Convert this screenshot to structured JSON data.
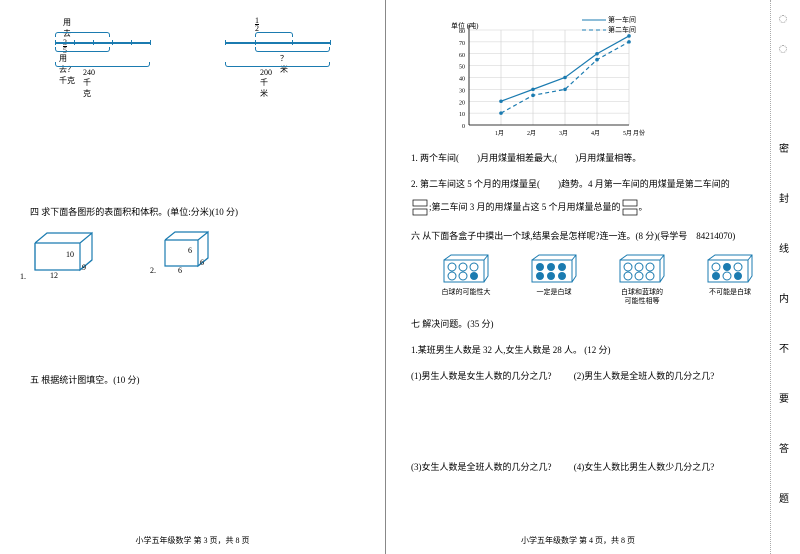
{
  "left": {
    "diag1": {
      "frac_label": "用去",
      "frac_n": "3",
      "frac_d": "5",
      "brace_used": "用去？千克",
      "total": "240千克"
    },
    "diag2": {
      "frac_n": "1",
      "frac_d": "2",
      "unknown": "？米",
      "total": "200千米"
    },
    "section4": "四 求下面各图形的表面积和体积。(单位:分米)(10 分)",
    "cuboid1": {
      "l": "12",
      "w": "9",
      "h": "10",
      "num": "1."
    },
    "cuboid2": {
      "l": "6",
      "w": "6",
      "h": "6",
      "num": "2."
    },
    "section5": "五 根据统计图填空。(10 分)",
    "footer": "小学五年级数学  第 3 页，共 8 页"
  },
  "right": {
    "chart": {
      "unit": "单位 (吨)",
      "legend1": "第一车间",
      "legend2": "第二车间",
      "ylabels": [
        "80",
        "70",
        "60",
        "50",
        "40",
        "30",
        "20",
        "10",
        "0"
      ],
      "xlabels": [
        "1月",
        "2月",
        "3月",
        "4月",
        "5月"
      ],
      "xaxis": "月份",
      "series1": [
        [
          0,
          20
        ],
        [
          1,
          30
        ],
        [
          2,
          40
        ],
        [
          3,
          60
        ],
        [
          4,
          75
        ]
      ],
      "series2": [
        [
          0,
          10
        ],
        [
          1,
          25
        ],
        [
          2,
          30
        ],
        [
          3,
          55
        ],
        [
          4,
          70
        ]
      ],
      "grid": "#cfcfcf",
      "line1": "#1b7bb0",
      "line2": "#1b7bb0"
    },
    "q1": "1. 两个车间(　　)月用煤量相差最大,(　　)月用煤量相等。",
    "q2": "2. 第二车间这 5 个月的用煤量呈(　　)趋势。4 月第一车间的用煤量是第二车间的",
    "q2b_a": ";第二车间 3 月的用煤量占这 5 个月用煤量总量的",
    "q2b_b": "。",
    "section6": "六 从下面各盒子中摸出一个球,结果会是怎样呢?连一连。(8 分)(导学号　84214070)",
    "prob": [
      "白球的可能性大",
      "一定是白球",
      "白球和蓝球的\n可能性相等",
      "不可能是白球"
    ],
    "section7": "七 解决问题。(35 分)",
    "p1": "1.某班男生人数是 32 人,女生人数是 28 人。 (12 分)",
    "p1_1": "(1)男生人数是女生人数的几分之几?",
    "p1_2": "(2)男生人数是全班人数的几分之几?",
    "p1_3": "(3)女生人数是全班人数的几分之几?",
    "p1_4": "(4)女生人数比男生人数少几分之几?",
    "footer": "小学五年级数学  第 4 页，共 8 页"
  },
  "margin": [
    "密",
    "封",
    "线",
    "内",
    "不",
    "要",
    "答",
    "题"
  ]
}
